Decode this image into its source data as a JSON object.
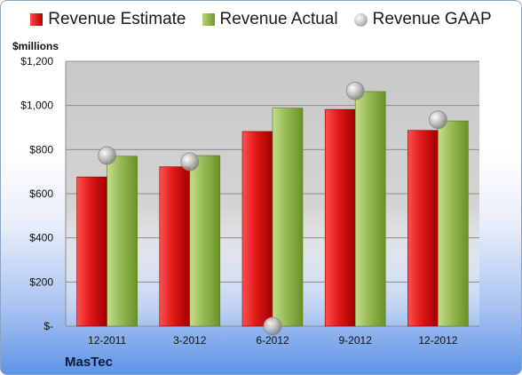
{
  "legend": {
    "estimate": "Revenue Estimate",
    "actual": "Revenue Actual",
    "gaap": "Revenue GAAP"
  },
  "units_label": "$millions",
  "company": "MasTec",
  "colors": {
    "estimate": "#d01414",
    "actual": "#8cb04a",
    "gaap": "#b0b0b0"
  },
  "chart_data": {
    "type": "bar",
    "categories": [
      "12-2011",
      "3-2012",
      "6-2012",
      "9-2012",
      "12-2012"
    ],
    "series": [
      {
        "name": "Revenue Estimate",
        "values": [
          676,
          722,
          882,
          982,
          887
        ]
      },
      {
        "name": "Revenue Actual",
        "values": [
          770,
          773,
          988,
          1063,
          930
        ]
      },
      {
        "name": "Revenue GAAP",
        "values": [
          773,
          745,
          0,
          1066,
          935
        ],
        "marker": "circle"
      }
    ],
    "ylabel": "$millions",
    "ylim": [
      0,
      1200
    ],
    "yticks": [
      0,
      200,
      400,
      600,
      800,
      1000,
      1200
    ],
    "ytick_labels": [
      "$-",
      "$200",
      "$400",
      "$600",
      "$800",
      "$1,000",
      "$1,200"
    ],
    "grid": true,
    "legend_position": "top"
  }
}
